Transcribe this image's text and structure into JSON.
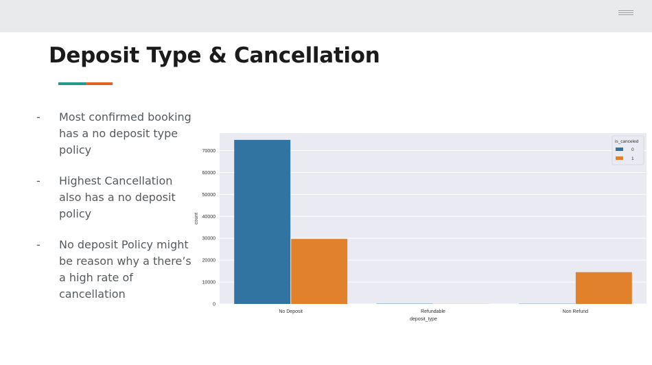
{
  "slide": {
    "title": "Deposit Type & Cancellation",
    "accent_colors": [
      "#1f9a8d",
      "#e5621f"
    ],
    "menu_icon": "hamburger-menu-icon"
  },
  "bullets": [
    {
      "marker": "-",
      "text": "Most confirmed booking has a no deposit type policy"
    },
    {
      "marker": "-",
      "text": "Highest Cancellation also has a no deposit policy"
    },
    {
      "marker": "-",
      "text": "No deposit Policy might be reason why a there’s a high rate of cancellation"
    }
  ],
  "chart_data": {
    "type": "bar",
    "categories": [
      "No Deposit",
      "Refundable",
      "Non Refund"
    ],
    "series": [
      {
        "name": "0",
        "values": [
          74900,
          120,
          90
        ],
        "color": "#3274a1"
      },
      {
        "name": "1",
        "values": [
          29700,
          40,
          14500
        ],
        "color": "#e1812c"
      }
    ],
    "xlabel": "deposit_type",
    "ylabel": "count",
    "ylim": [
      0,
      78000
    ],
    "yticks": [
      0,
      10000,
      20000,
      30000,
      40000,
      50000,
      60000,
      70000
    ],
    "legend_title": "is_canceled",
    "legend_position": "top-right",
    "grid": true,
    "background": "#eaeaf2"
  }
}
